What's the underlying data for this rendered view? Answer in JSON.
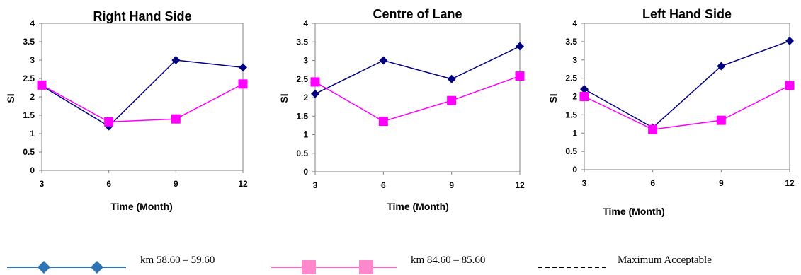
{
  "chart_data": [
    {
      "type": "line",
      "title": "Right Hand Side",
      "xlabel": "Time (Month)",
      "ylabel": "SI",
      "x": [
        3,
        6,
        9,
        12
      ],
      "ylim": [
        0,
        4
      ],
      "yticks": [
        "0",
        "0.5",
        "1",
        "1.5",
        "2",
        "2.5",
        "3",
        "3.5",
        "4"
      ],
      "xticks": [
        "3",
        "6",
        "9",
        "12"
      ],
      "grid": false,
      "series": [
        {
          "name": "km 58.60 – 59.60",
          "values": [
            2.3,
            1.2,
            3.0,
            2.8
          ],
          "color": "#000080",
          "marker": "diamond"
        },
        {
          "name": "km 84.60 – 85.60",
          "values": [
            2.32,
            1.32,
            1.4,
            2.35
          ],
          "color": "#FF00FF",
          "marker": "square"
        }
      ]
    },
    {
      "type": "line",
      "title": "Centre of Lane",
      "xlabel": "Time (Month)",
      "ylabel": "SI",
      "x": [
        3,
        6,
        9,
        12
      ],
      "ylim": [
        0,
        4
      ],
      "yticks": [
        "0",
        "0.5",
        "1",
        "1.5",
        "2",
        "2.5",
        "3",
        "3.5",
        "4"
      ],
      "xticks": [
        "3",
        "6",
        "9",
        "12"
      ],
      "grid": false,
      "series": [
        {
          "name": "km 58.60 – 59.60",
          "values": [
            2.1,
            3.0,
            2.5,
            3.38
          ],
          "color": "#000080",
          "marker": "diamond"
        },
        {
          "name": "km 84.60 – 85.60",
          "values": [
            2.42,
            1.36,
            1.92,
            2.58
          ],
          "color": "#FF00FF",
          "marker": "square"
        }
      ]
    },
    {
      "type": "line",
      "title": "Left Hand Side",
      "xlabel": "Time (Month)",
      "ylabel": "SI",
      "x": [
        3,
        6,
        9,
        12
      ],
      "ylim": [
        0,
        4
      ],
      "yticks": [
        "0",
        "0.5",
        "1",
        "1.5",
        "2",
        "2.5",
        "3",
        "3.5",
        "4"
      ],
      "xticks": [
        "3",
        "6",
        "9",
        "12"
      ],
      "grid": false,
      "series": [
        {
          "name": "km 58.60 – 59.60",
          "values": [
            2.2,
            1.15,
            2.83,
            3.52
          ],
          "color": "#000080",
          "marker": "diamond"
        },
        {
          "name": "km 84.60 – 85.60",
          "values": [
            2.0,
            1.1,
            1.35,
            2.3
          ],
          "color": "#FF00FF",
          "marker": "square"
        }
      ]
    }
  ],
  "legend": {
    "placement": "bottom",
    "items": [
      {
        "label": "km 58.60 – 59.60",
        "color": "#2E75B6",
        "marker": "diamond",
        "style": "solid"
      },
      {
        "label": "km 84.60 – 85.60",
        "color": "#FF66CC",
        "marker": "square",
        "style": "solid"
      },
      {
        "label": "Maximum Acceptable",
        "color": "#000000",
        "marker": "none",
        "style": "dashed"
      }
    ]
  }
}
